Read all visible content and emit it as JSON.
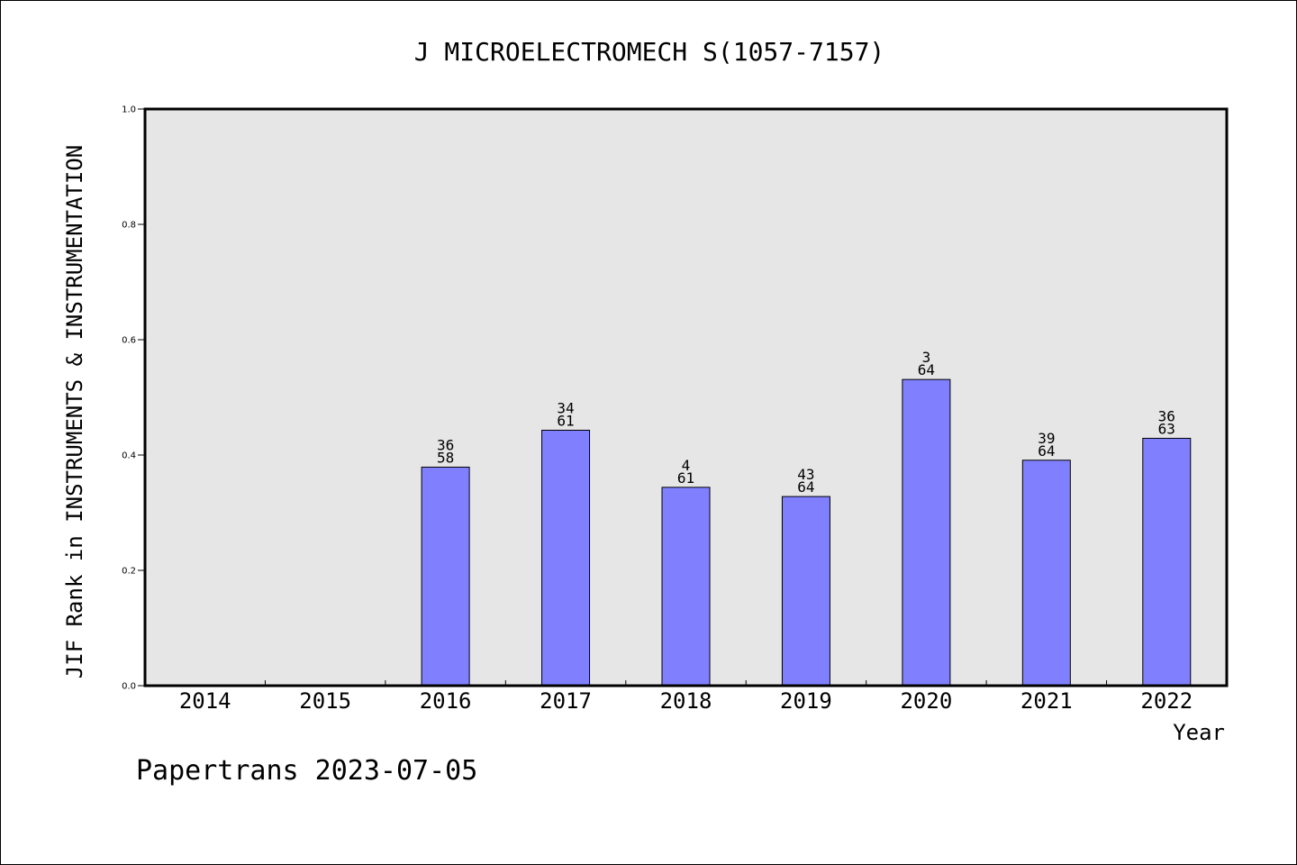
{
  "footer": "Papertrans 2023-07-05",
  "chart_data": {
    "type": "bar",
    "title": "J MICROELECTROMECH S(1057-7157)",
    "xlabel": "Year",
    "ylabel": "JIF Rank in INSTRUMENTS & INSTRUMENTATION",
    "ylim": [
      0,
      1.0
    ],
    "yticks": [
      "0.0",
      "0.2",
      "0.4",
      "0.6",
      "0.8",
      "1.0"
    ],
    "grid": false,
    "categories": [
      "2014",
      "2015",
      "2016",
      "2017",
      "2018",
      "2019",
      "2020",
      "2021",
      "2022"
    ],
    "values": [
      null,
      null,
      0.379,
      0.443,
      0.344,
      0.328,
      0.531,
      0.391,
      0.429
    ],
    "labels": [
      null,
      null,
      {
        "rank": "36",
        "total": "58"
      },
      {
        "rank": "34",
        "total": "61"
      },
      {
        "rank": "4",
        "total": "61"
      },
      {
        "rank": "43",
        "total": "64"
      },
      {
        "rank": "3",
        "total": "64"
      },
      {
        "rank": "39",
        "total": "64"
      },
      {
        "rank": "36",
        "total": "63"
      }
    ],
    "colors": {
      "bar": "#8080ff",
      "plot_bg": "#e6e6e6",
      "axis": "#000000"
    }
  }
}
